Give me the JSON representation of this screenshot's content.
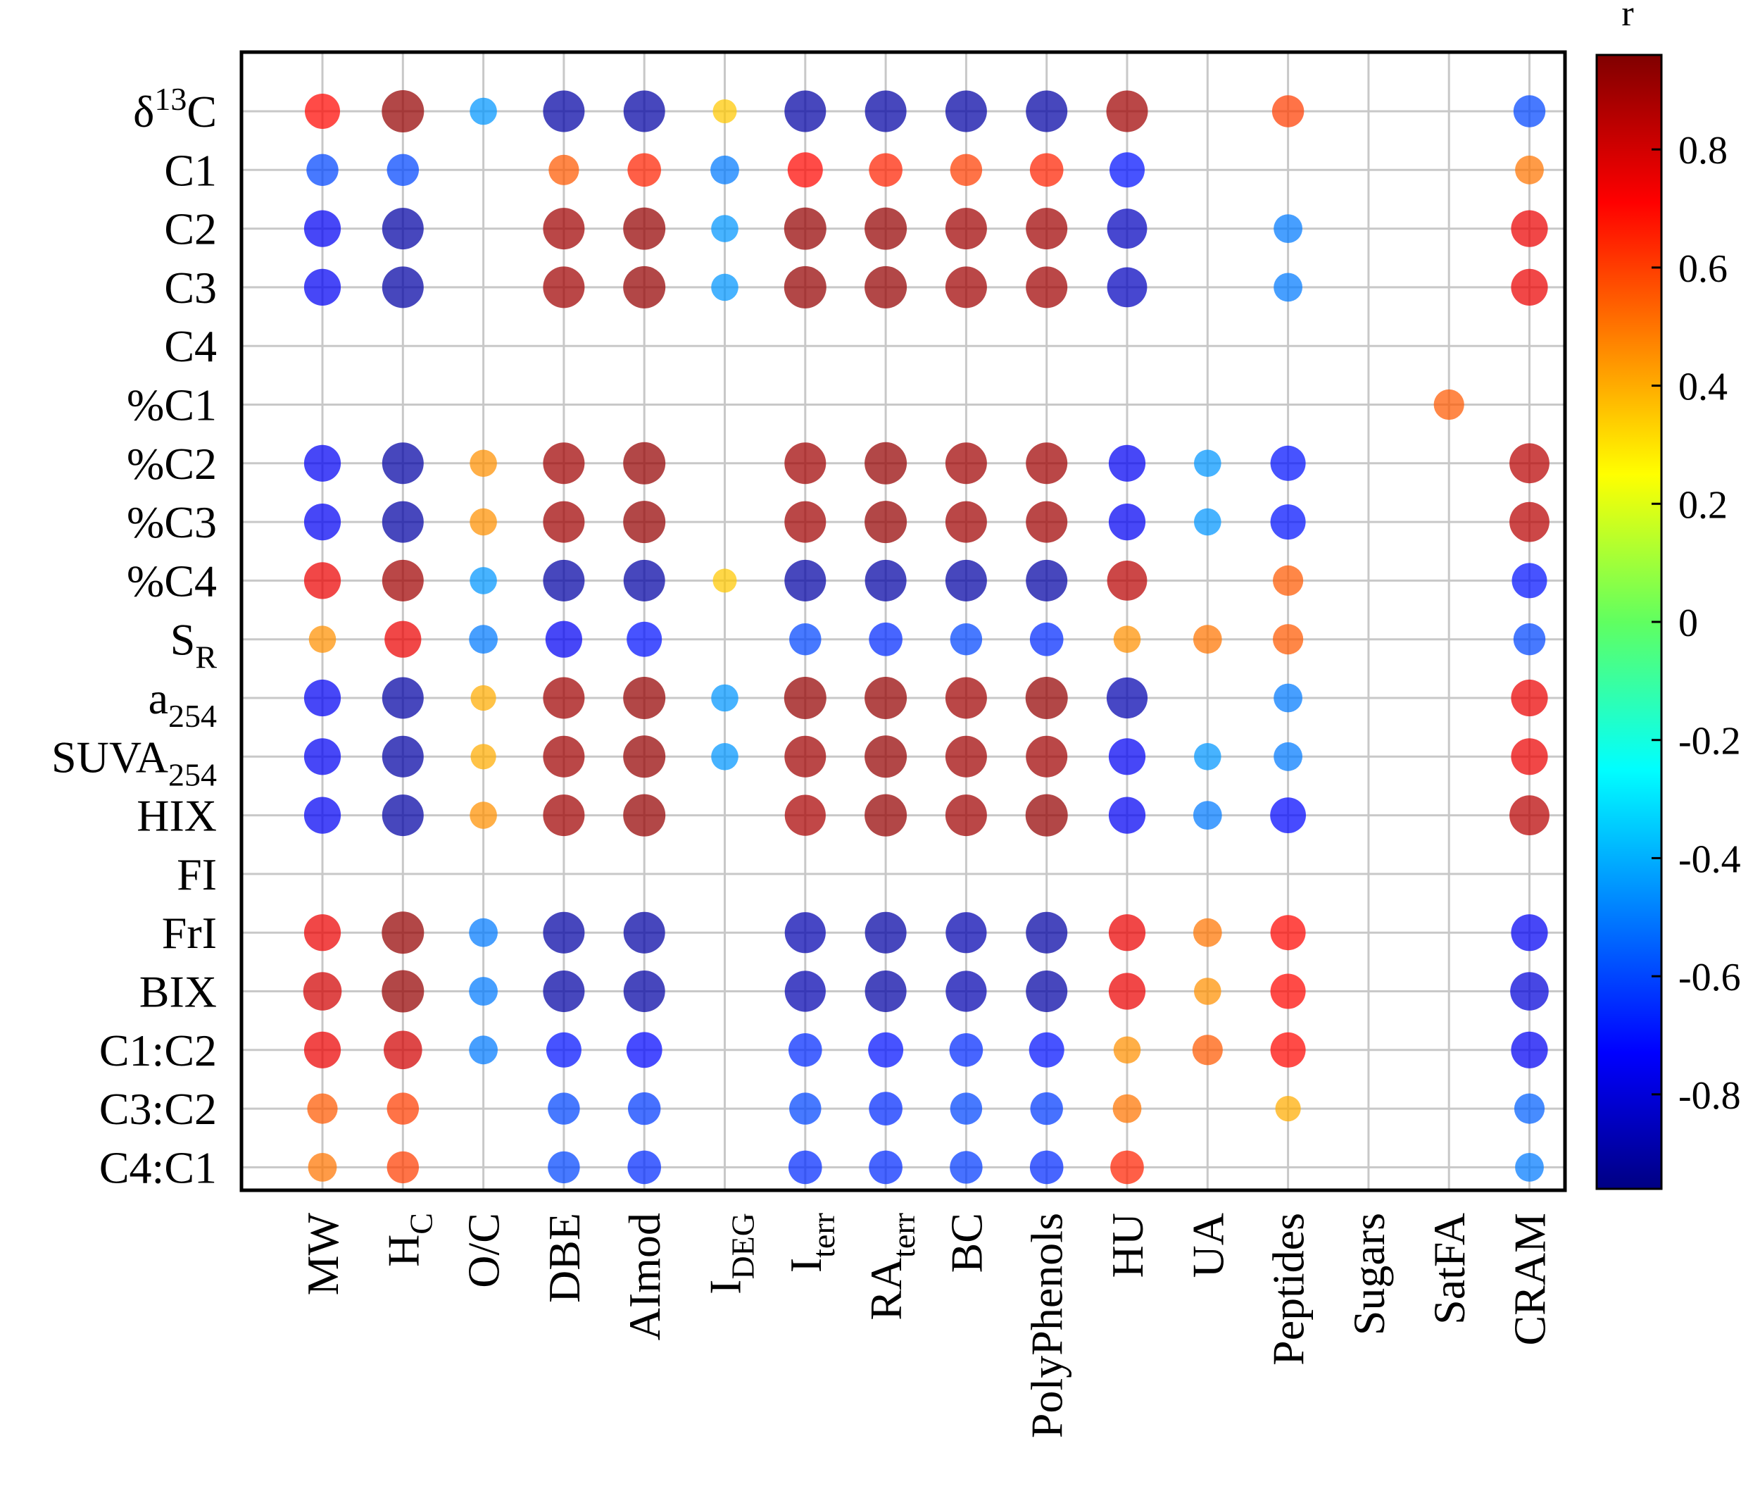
{
  "chart_data": {
    "type": "correlation-bubble",
    "colorbar_title": "r",
    "colorbar_range": [
      -0.96,
      0.96
    ],
    "colorbar_ticks": [
      {
        "value": 0.8,
        "label": "0.8"
      },
      {
        "value": 0.6,
        "label": "0.6"
      },
      {
        "value": 0.4,
        "label": "0.4"
      },
      {
        "value": 0.2,
        "label": "0.2"
      },
      {
        "value": 0,
        "label": "0"
      },
      {
        "value": -0.2,
        "label": "-0.2"
      },
      {
        "value": -0.4,
        "label": "-0.4"
      },
      {
        "value": -0.6,
        "label": "-0.6"
      },
      {
        "value": -0.8,
        "label": "-0.8"
      }
    ],
    "rows": [
      {
        "text": "δ",
        "sup": "13",
        "tail": "C"
      },
      {
        "text": "C1"
      },
      {
        "text": "C2"
      },
      {
        "text": "C3"
      },
      {
        "text": "C4"
      },
      {
        "text": "%C1"
      },
      {
        "text": "%C2"
      },
      {
        "text": "%C3"
      },
      {
        "text": "%C4"
      },
      {
        "text": "S",
        "sub": "R"
      },
      {
        "text": "a",
        "sub": "254"
      },
      {
        "text": "SUVA",
        "sub": "254"
      },
      {
        "text": "HIX"
      },
      {
        "text": "FI"
      },
      {
        "text": "FrI"
      },
      {
        "text": "BIX"
      },
      {
        "text": "C1:C2"
      },
      {
        "text": "C3:C2"
      },
      {
        "text": "C4:C1"
      }
    ],
    "columns": [
      {
        "text": "MW"
      },
      {
        "text": "H",
        "sub": "C"
      },
      {
        "text": "O/C"
      },
      {
        "text": "DBE"
      },
      {
        "text": "AImod"
      },
      {
        "text": "I",
        "sub": "DEG"
      },
      {
        "text": "I",
        "sub": "terr"
      },
      {
        "text": "RA",
        "sub": "terr"
      },
      {
        "text": "BC"
      },
      {
        "text": "PolyPhenols"
      },
      {
        "text": "HU"
      },
      {
        "text": "UA"
      },
      {
        "text": "Peptides"
      },
      {
        "text": "Sugars"
      },
      {
        "text": "SatFA"
      },
      {
        "text": "CRAM"
      }
    ],
    "values": [
      [
        0.7,
        0.92,
        -0.45,
        -0.9,
        -0.9,
        0.35,
        -0.9,
        -0.9,
        -0.9,
        -0.9,
        0.9,
        null,
        0.6,
        null,
        null,
        -0.6
      ],
      [
        -0.6,
        -0.6,
        null,
        0.55,
        0.65,
        -0.5,
        0.7,
        0.65,
        0.6,
        0.65,
        -0.7,
        null,
        null,
        null,
        null,
        0.5
      ],
      [
        -0.75,
        -0.9,
        null,
        0.9,
        0.92,
        -0.45,
        0.92,
        0.92,
        0.9,
        0.9,
        -0.85,
        null,
        -0.5,
        null,
        null,
        0.75
      ],
      [
        -0.75,
        -0.9,
        null,
        0.9,
        0.92,
        -0.45,
        0.92,
        0.92,
        0.9,
        0.9,
        -0.85,
        null,
        -0.5,
        null,
        null,
        0.75
      ],
      [
        null,
        null,
        null,
        null,
        null,
        null,
        null,
        null,
        null,
        null,
        null,
        null,
        null,
        null,
        null,
        null
      ],
      [
        null,
        null,
        null,
        null,
        null,
        null,
        null,
        null,
        null,
        null,
        null,
        null,
        null,
        null,
        0.55,
        null
      ],
      [
        -0.75,
        -0.9,
        0.45,
        0.9,
        0.92,
        null,
        0.9,
        0.92,
        0.9,
        0.9,
        -0.75,
        -0.45,
        -0.7,
        null,
        null,
        0.85
      ],
      [
        -0.75,
        -0.9,
        0.45,
        0.9,
        0.92,
        null,
        0.9,
        0.92,
        0.9,
        0.9,
        -0.75,
        -0.45,
        -0.7,
        null,
        null,
        0.85
      ],
      [
        0.75,
        0.9,
        -0.45,
        -0.9,
        -0.9,
        0.35,
        -0.9,
        -0.9,
        -0.9,
        -0.9,
        0.85,
        null,
        0.55,
        null,
        null,
        -0.7
      ],
      [
        0.45,
        0.75,
        -0.5,
        -0.75,
        -0.7,
        null,
        -0.6,
        -0.65,
        -0.6,
        -0.65,
        0.45,
        0.5,
        0.55,
        null,
        null,
        -0.6
      ],
      [
        -0.75,
        -0.9,
        0.4,
        0.9,
        0.92,
        -0.45,
        0.92,
        0.92,
        0.9,
        0.92,
        -0.88,
        null,
        -0.5,
        null,
        null,
        0.75
      ],
      [
        -0.75,
        -0.9,
        0.4,
        0.9,
        0.92,
        -0.45,
        0.9,
        0.92,
        0.9,
        0.9,
        -0.75,
        -0.45,
        -0.5,
        null,
        null,
        0.75
      ],
      [
        -0.75,
        -0.9,
        0.45,
        0.9,
        0.92,
        null,
        0.88,
        0.92,
        0.9,
        0.92,
        -0.75,
        -0.5,
        -0.72,
        null,
        null,
        0.85
      ],
      [
        null,
        null,
        null,
        null,
        null,
        null,
        null,
        null,
        null,
        null,
        null,
        null,
        null,
        null,
        null,
        null
      ],
      [
        0.75,
        0.92,
        -0.5,
        -0.9,
        -0.9,
        null,
        -0.88,
        -0.9,
        -0.88,
        -0.9,
        0.75,
        0.5,
        0.7,
        null,
        null,
        -0.75
      ],
      [
        0.8,
        0.92,
        -0.5,
        -0.9,
        -0.9,
        null,
        -0.88,
        -0.9,
        -0.88,
        -0.9,
        0.75,
        0.45,
        0.7,
        null,
        null,
        -0.8
      ],
      [
        0.75,
        0.8,
        -0.5,
        -0.7,
        -0.72,
        null,
        -0.65,
        -0.7,
        -0.65,
        -0.7,
        0.45,
        0.55,
        0.7,
        null,
        null,
        -0.75
      ],
      [
        0.55,
        0.6,
        null,
        -0.6,
        -0.62,
        null,
        -0.6,
        -0.65,
        -0.6,
        -0.62,
        0.5,
        null,
        0.4,
        null,
        null,
        -0.55
      ],
      [
        0.5,
        0.6,
        null,
        -0.6,
        -0.65,
        null,
        -0.65,
        -0.65,
        -0.62,
        -0.65,
        0.65,
        null,
        null,
        null,
        null,
        -0.5
      ]
    ]
  }
}
